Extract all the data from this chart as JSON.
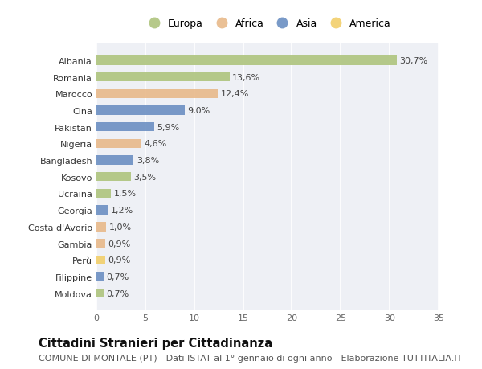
{
  "countries": [
    "Albania",
    "Romania",
    "Marocco",
    "Cina",
    "Pakistan",
    "Nigeria",
    "Bangladesh",
    "Kosovo",
    "Ucraina",
    "Georgia",
    "Costa d'Avorio",
    "Gambia",
    "Perù",
    "Filippine",
    "Moldova"
  ],
  "values": [
    30.7,
    13.6,
    12.4,
    9.0,
    5.9,
    4.6,
    3.8,
    3.5,
    1.5,
    1.2,
    1.0,
    0.9,
    0.9,
    0.7,
    0.7
  ],
  "labels": [
    "30,7%",
    "13,6%",
    "12,4%",
    "9,0%",
    "5,9%",
    "4,6%",
    "3,8%",
    "3,5%",
    "1,5%",
    "1,2%",
    "1,0%",
    "0,9%",
    "0,9%",
    "0,7%",
    "0,7%"
  ],
  "continents": [
    "Europa",
    "Europa",
    "Africa",
    "Asia",
    "Asia",
    "Africa",
    "Asia",
    "Europa",
    "Europa",
    "Asia",
    "Africa",
    "Africa",
    "America",
    "Asia",
    "Europa"
  ],
  "continent_colors": {
    "Europa": "#aec47d",
    "Africa": "#e8b98a",
    "Asia": "#6b8fc2",
    "America": "#f2cf6a"
  },
  "legend_order": [
    "Europa",
    "Africa",
    "Asia",
    "America"
  ],
  "title": "Cittadini Stranieri per Cittadinanza",
  "subtitle": "COMUNE DI MONTALE (PT) - Dati ISTAT al 1° gennaio di ogni anno - Elaborazione TUTTITALIA.IT",
  "xlim": [
    0,
    35
  ],
  "xticks": [
    0,
    5,
    10,
    15,
    20,
    25,
    30,
    35
  ],
  "background_color": "#ffffff",
  "plot_bg_color": "#eef0f5",
  "bar_height": 0.55,
  "title_fontsize": 10.5,
  "subtitle_fontsize": 8,
  "label_fontsize": 8,
  "tick_fontsize": 8,
  "legend_fontsize": 9
}
